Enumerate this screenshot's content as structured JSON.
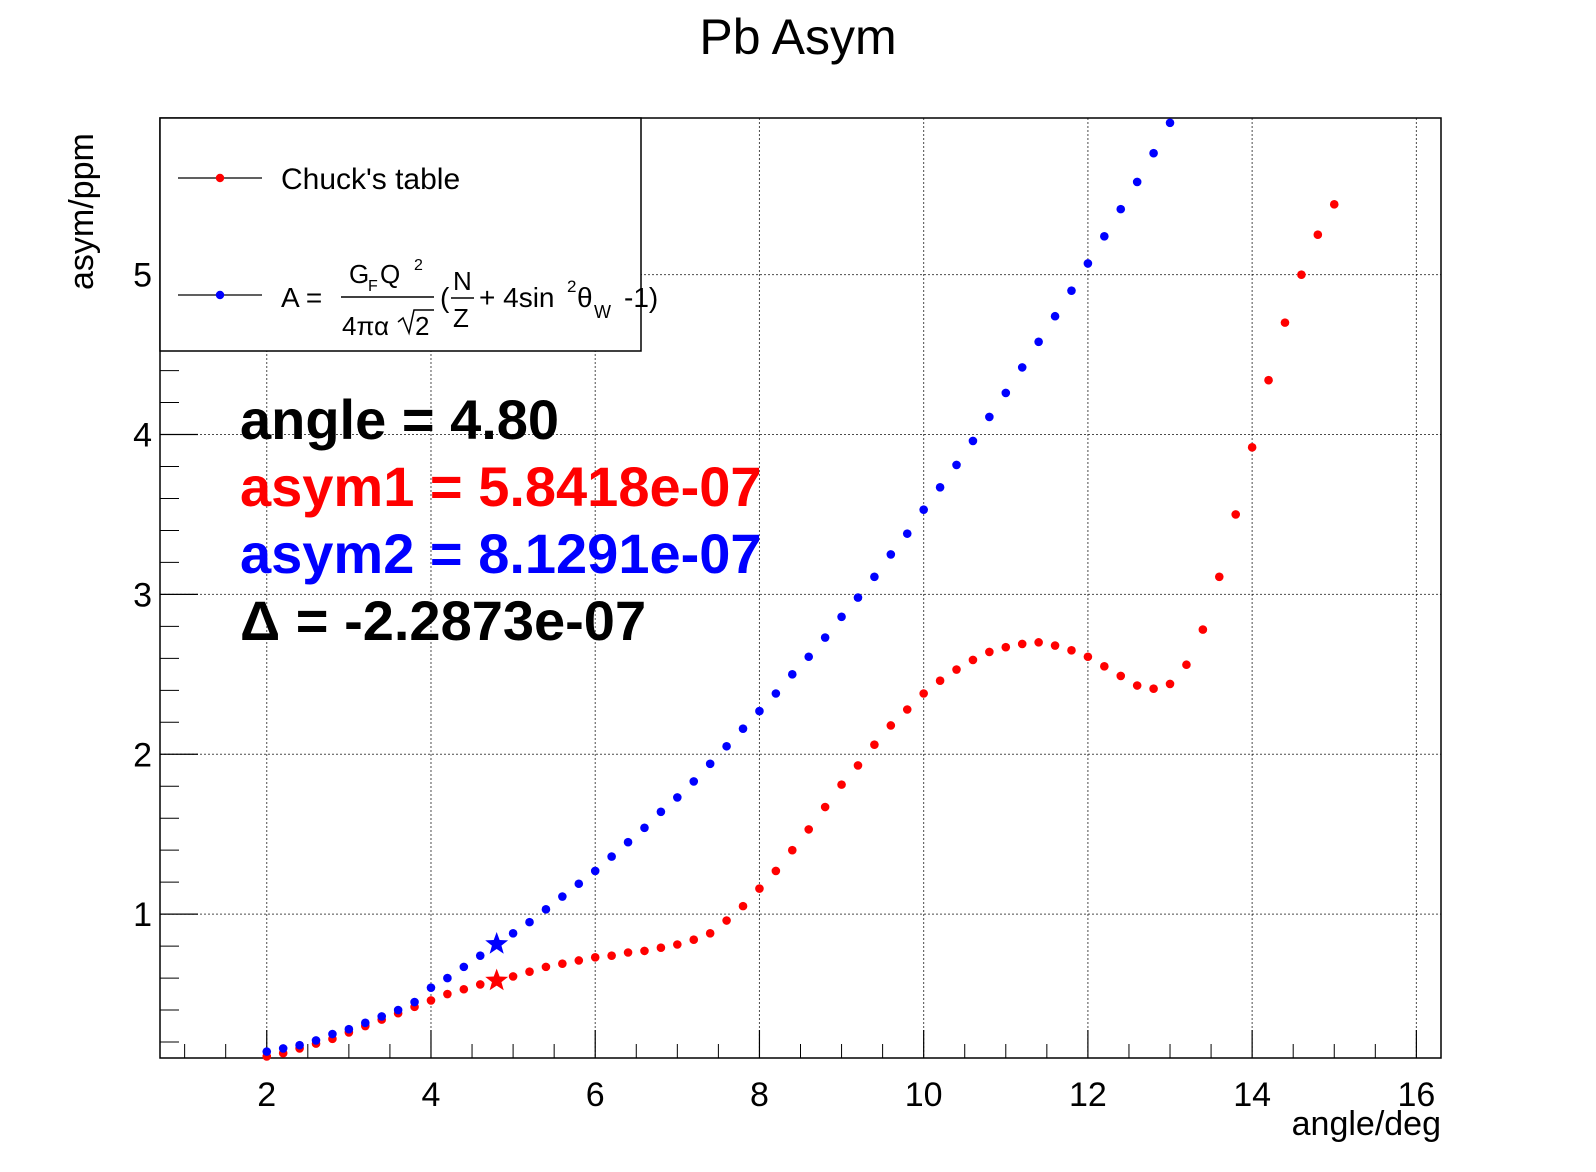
{
  "chart_data": {
    "type": "scatter",
    "title": "Pb Asym",
    "xlabel": "angle/deg",
    "ylabel": "asym/ppm",
    "xlim": [
      0.7,
      16.3
    ],
    "ylim": [
      0.1,
      5.98
    ],
    "x_ticks": [
      "2",
      "4",
      "6",
      "8",
      "10",
      "12",
      "14",
      "16"
    ],
    "y_ticks": [
      "1",
      "2",
      "3",
      "4",
      "5"
    ],
    "grid": true,
    "legend_position": "top-left",
    "legend": {
      "entry1": "Chuck's table",
      "formula": {
        "lhs": "A =",
        "num_g": "G",
        "num_f": "F",
        "num_q": "Q",
        "num_sup": "2",
        "den": "4πα",
        "den_root": "2",
        "lparen": "(",
        "frac_n": "N",
        "frac_z": "Z",
        "plus_sin": "+ 4sin",
        "sup2": "2",
        "theta": "θ",
        "sub_w": "W",
        "tail": "-1)"
      }
    },
    "series": [
      {
        "name": "Chuck's table",
        "color": "#ff0000",
        "x": [
          2.0,
          2.2,
          2.4,
          2.6,
          2.8,
          3.0,
          3.2,
          3.4,
          3.6,
          3.8,
          4.0,
          4.2,
          4.4,
          4.6,
          4.8,
          5.0,
          5.2,
          5.4,
          5.6,
          5.8,
          6.0,
          6.2,
          6.4,
          6.6,
          6.8,
          7.0,
          7.2,
          7.4,
          7.6,
          7.8,
          8.0,
          8.2,
          8.4,
          8.6,
          8.8,
          9.0,
          9.2,
          9.4,
          9.6,
          9.8,
          10.0,
          10.2,
          10.4,
          10.6,
          10.8,
          11.0,
          11.2,
          11.4,
          11.6,
          11.8,
          12.0,
          12.2,
          12.4,
          12.6,
          12.8,
          13.0,
          13.2,
          13.4,
          13.6,
          13.8,
          14.0,
          14.2,
          14.4,
          14.6,
          14.8,
          15.0
        ],
        "y": [
          0.11,
          0.13,
          0.16,
          0.19,
          0.22,
          0.26,
          0.3,
          0.34,
          0.38,
          0.42,
          0.46,
          0.5,
          0.53,
          0.56,
          0.58,
          0.61,
          0.64,
          0.67,
          0.69,
          0.71,
          0.73,
          0.74,
          0.76,
          0.77,
          0.79,
          0.81,
          0.84,
          0.88,
          0.96,
          1.05,
          1.16,
          1.27,
          1.4,
          1.53,
          1.67,
          1.81,
          1.93,
          2.06,
          2.18,
          2.28,
          2.38,
          2.46,
          2.53,
          2.59,
          2.64,
          2.67,
          2.69,
          2.7,
          2.68,
          2.65,
          2.61,
          2.55,
          2.49,
          2.43,
          2.41,
          2.44,
          2.56,
          2.78,
          3.11,
          3.5,
          3.92,
          4.34,
          4.7,
          5.0,
          5.25,
          5.44
        ]
      },
      {
        "name": "A = G_F Q^2 / (4πα√2) (N/Z + 4sin^2θ_W -1)",
        "color": "#0000ff",
        "x": [
          2.0,
          2.2,
          2.4,
          2.6,
          2.8,
          3.0,
          3.2,
          3.4,
          3.6,
          3.8,
          4.0,
          4.2,
          4.4,
          4.6,
          4.8,
          5.0,
          5.2,
          5.4,
          5.6,
          5.8,
          6.0,
          6.2,
          6.4,
          6.6,
          6.8,
          7.0,
          7.2,
          7.4,
          7.6,
          7.8,
          8.0,
          8.2,
          8.4,
          8.6,
          8.8,
          9.0,
          9.2,
          9.4,
          9.6,
          9.8,
          10.0,
          10.2,
          10.4,
          10.6,
          10.8,
          11.0,
          11.2,
          11.4,
          11.6,
          11.8,
          12.0,
          12.2,
          12.4,
          12.6,
          12.8,
          13.0
        ],
        "y": [
          0.14,
          0.16,
          0.18,
          0.21,
          0.25,
          0.28,
          0.32,
          0.36,
          0.4,
          0.45,
          0.54,
          0.6,
          0.67,
          0.74,
          0.81,
          0.88,
          0.95,
          1.03,
          1.11,
          1.19,
          1.27,
          1.36,
          1.45,
          1.54,
          1.64,
          1.73,
          1.83,
          1.94,
          2.05,
          2.16,
          2.27,
          2.38,
          2.5,
          2.61,
          2.73,
          2.86,
          2.98,
          3.11,
          3.25,
          3.38,
          3.53,
          3.67,
          3.81,
          3.96,
          4.11,
          4.26,
          4.42,
          4.58,
          4.74,
          4.9,
          5.07,
          5.24,
          5.41,
          5.58,
          5.76,
          5.95
        ]
      }
    ],
    "markers": [
      {
        "x": 4.8,
        "y": 0.58418,
        "color": "#ff0000",
        "shape": "star"
      },
      {
        "x": 4.8,
        "y": 0.81291,
        "color": "#0000ff",
        "shape": "star"
      }
    ]
  },
  "annotations": [
    {
      "text": "angle = 4.80",
      "color": "#000000"
    },
    {
      "text": "asym1 = 5.8418e-07",
      "color": "#ff0000"
    },
    {
      "text": "asym2 = 8.1291e-07",
      "color": "#0000ff"
    },
    {
      "text": "Δ = -2.2873e-07",
      "color": "#000000"
    }
  ]
}
